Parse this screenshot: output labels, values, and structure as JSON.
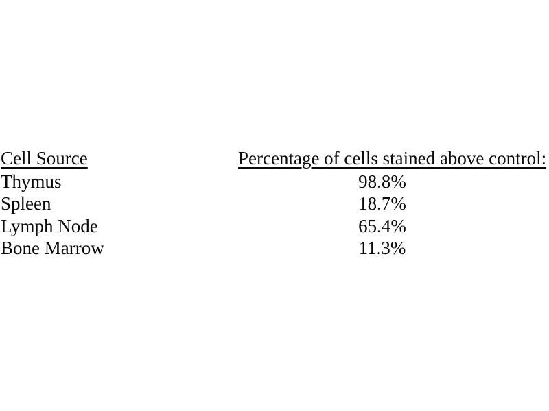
{
  "page": {
    "background_color": "#ffffff",
    "text_color": "#0a0a0a"
  },
  "table": {
    "columns": [
      {
        "header": "Cell Source"
      },
      {
        "header": "Percentage of cells stained above control:"
      }
    ],
    "rows": [
      {
        "cell_source": "Thymus",
        "percentage": "98.8%"
      },
      {
        "cell_source": "Spleen",
        "percentage": "18.7%"
      },
      {
        "cell_source": "Lymph Node",
        "percentage": "65.4%"
      },
      {
        "cell_source": "Bone Marrow",
        "percentage": "11.3%"
      }
    ]
  },
  "chart_data": {
    "type": "table",
    "columns": [
      "Cell Source",
      "Percentage of cells stained above control:"
    ],
    "categories": [
      "Thymus",
      "Spleen",
      "Lymph Node",
      "Bone Marrow"
    ],
    "values": [
      98.8,
      18.7,
      65.4,
      11.3
    ],
    "value_unit": "%"
  }
}
